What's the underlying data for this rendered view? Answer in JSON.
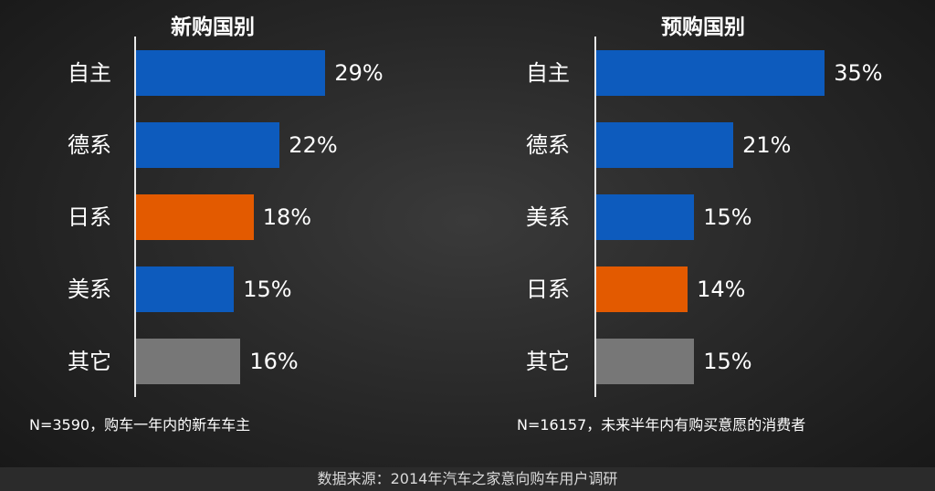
{
  "colors": {
    "blue": "#0d5bbd",
    "orange": "#e35a00",
    "gray": "#777777"
  },
  "chart_data": [
    {
      "type": "bar",
      "orientation": "horizontal",
      "title": "新购国别",
      "categories": [
        "自主",
        "德系",
        "日系",
        "美系",
        "其它"
      ],
      "values": [
        29,
        22,
        18,
        15,
        16
      ],
      "value_labels": [
        "29%",
        "22%",
        "18%",
        "15%",
        "16%"
      ],
      "bar_colors": [
        "#0d5bbd",
        "#0d5bbd",
        "#e35a00",
        "#0d5bbd",
        "#777777"
      ],
      "xlim": [
        0,
        40
      ],
      "note": "N=3590，购车一年内的新车车主"
    },
    {
      "type": "bar",
      "orientation": "horizontal",
      "title": "预购国别",
      "categories": [
        "自主",
        "德系",
        "美系",
        "日系",
        "其它"
      ],
      "values": [
        35,
        21,
        15,
        14,
        15
      ],
      "value_labels": [
        "35%",
        "21%",
        "15%",
        "14%",
        "15%"
      ],
      "bar_colors": [
        "#0d5bbd",
        "#0d5bbd",
        "#0d5bbd",
        "#e35a00",
        "#777777"
      ],
      "xlim": [
        0,
        40
      ],
      "note": "N=16157，未来半年内有购买意愿的消费者"
    }
  ],
  "footer": {
    "source": "数据来源：2014年汽车之家意向购车用户调研"
  }
}
